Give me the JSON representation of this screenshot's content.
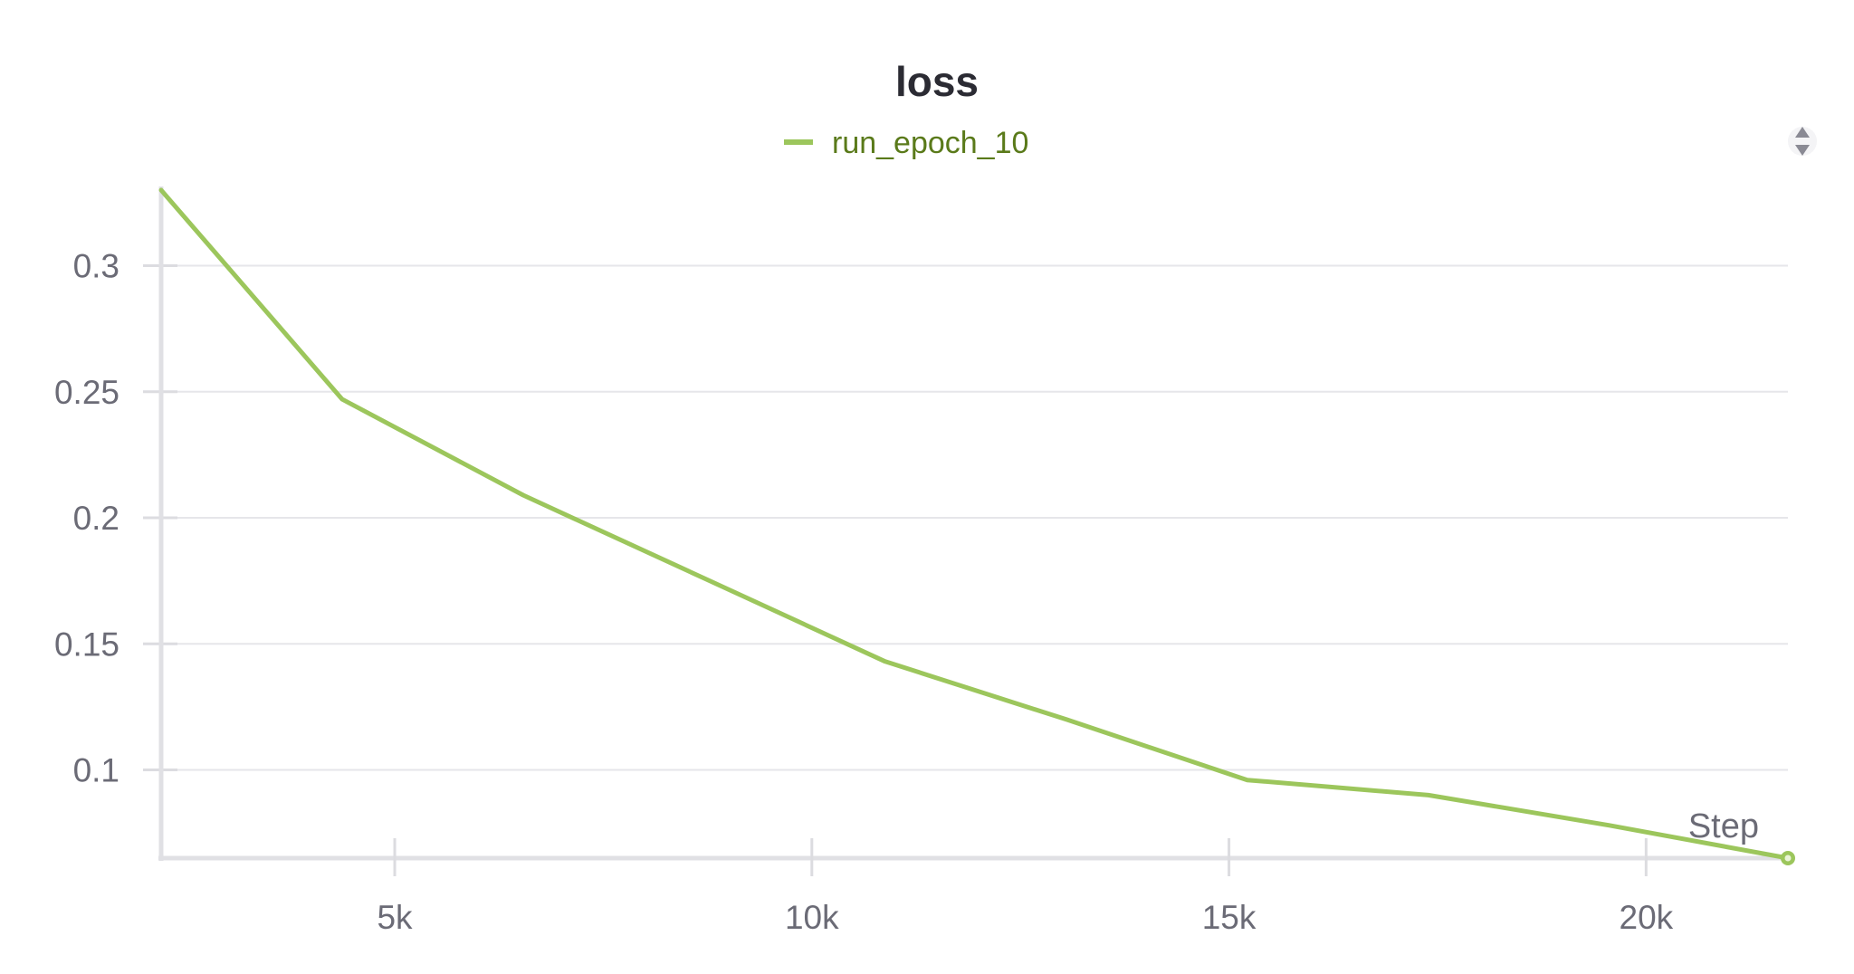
{
  "chart_data": {
    "type": "line",
    "title": "loss",
    "xlabel": "Step",
    "ylabel": "",
    "xlim": [
      2200,
      21700
    ],
    "ylim": [
      0.065,
      0.33
    ],
    "x_ticks": [
      5000,
      10000,
      15000,
      20000
    ],
    "x_tick_labels": [
      "5k",
      "10k",
      "15k",
      "20k"
    ],
    "y_ticks": [
      0.1,
      0.15,
      0.2,
      0.25,
      0.3
    ],
    "y_tick_labels": [
      "0.1",
      "0.15",
      "0.2",
      "0.25",
      "0.3"
    ],
    "grid": true,
    "legend": "top-center",
    "series": [
      {
        "name": "run_epoch_10",
        "color": "#9cc65c",
        "x": [
          2200,
          4370,
          6540,
          8710,
          10880,
          13050,
          15220,
          17390,
          19560,
          21700
        ],
        "y": [
          0.33,
          0.247,
          0.209,
          0.176,
          0.143,
          0.12,
          0.096,
          0.09,
          0.078,
          0.065
        ]
      }
    ]
  },
  "legend_text_color": "#5a7a1a",
  "scroll_icon": "sort-arrows-icon"
}
